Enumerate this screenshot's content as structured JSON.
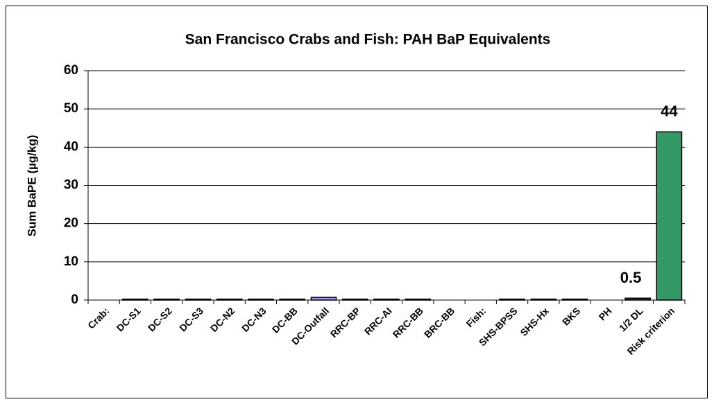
{
  "chart_data": {
    "type": "bar",
    "title": "San Francisco Crabs and Fish:  PAH BaP Equivalents",
    "y_label": "Sum BaPE (µg/kg)",
    "categories": [
      "Crab:",
      "DC-S1",
      "DC-S2",
      "DC-S3",
      "DC-N2",
      "DC-N3",
      "DC-BB",
      "DC-Outfall",
      "RRC-BP",
      "RRC-AI",
      "RRC-BB",
      "BRC-BB",
      "Fish:",
      "SHS-BPSS",
      "SHS-Hx",
      "BKS",
      "PH",
      "1/2 DL",
      "Risk criterion"
    ],
    "values": [
      null,
      0.25,
      0.25,
      0.25,
      0.25,
      0.25,
      0.25,
      0.7,
      0.25,
      0.25,
      0.25,
      null,
      null,
      0.25,
      0.25,
      0.25,
      null,
      0.5,
      44
    ],
    "value_labels": [
      null,
      null,
      null,
      null,
      null,
      null,
      null,
      null,
      null,
      null,
      null,
      null,
      null,
      null,
      null,
      null,
      null,
      "0.5",
      "44"
    ],
    "colors": [
      "#333333",
      "#333333",
      "#333333",
      "#333333",
      "#333333",
      "#333333",
      "#333333",
      "#9999ff",
      "#333333",
      "#333333",
      "#333333",
      "#333333",
      "#333333",
      "#333333",
      "#333333",
      "#333333",
      "#333333",
      "#333333",
      "#339966"
    ],
    "ylim": [
      0,
      60
    ],
    "yticks": [
      0,
      10,
      20,
      30,
      40,
      50,
      60
    ],
    "grid": true
  }
}
